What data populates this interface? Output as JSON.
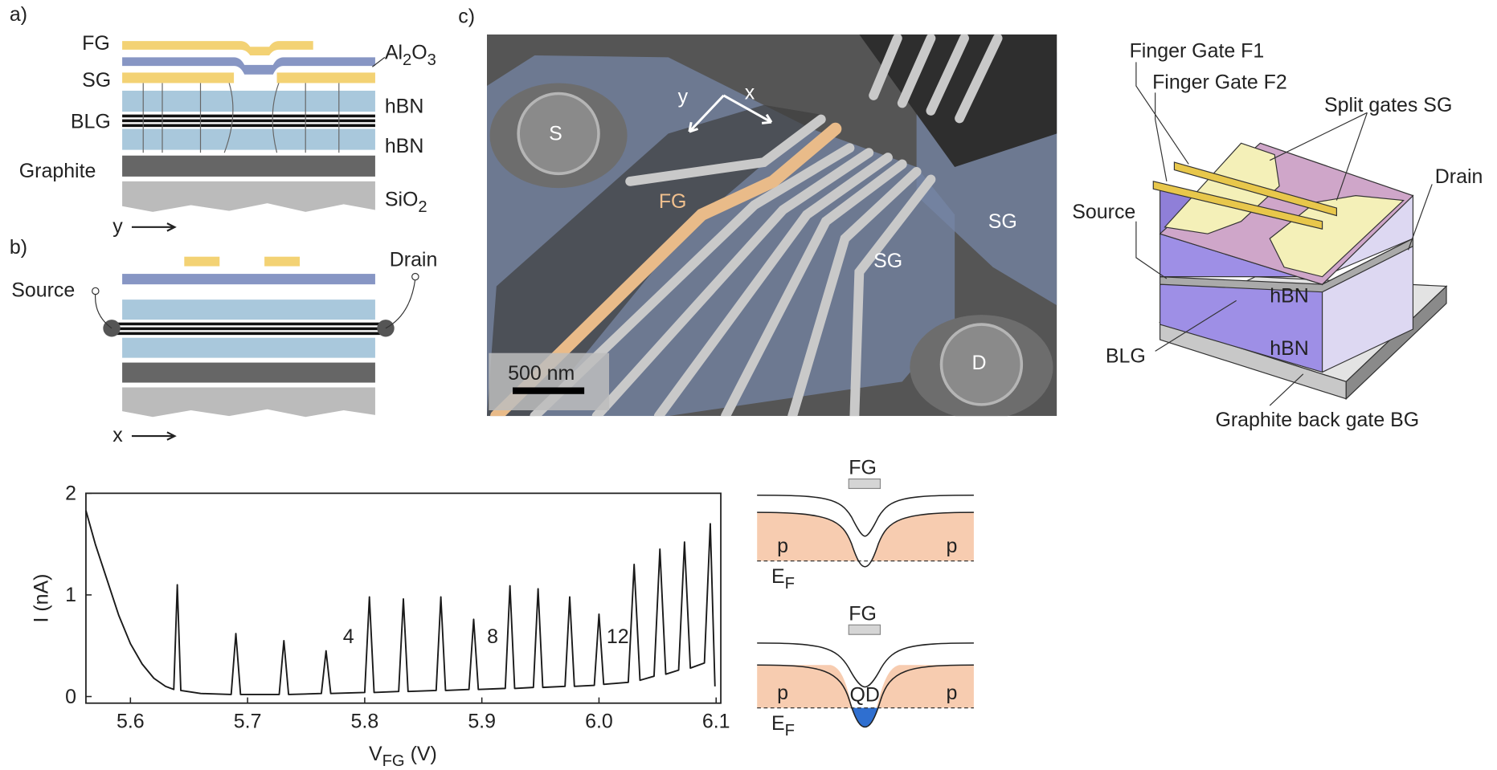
{
  "panel_a": {
    "label": "a)",
    "finger_gate": "FG",
    "split_gate": "SG",
    "blg": "BLG",
    "graphite": "Graphite",
    "al2o3": [
      "Al",
      "2",
      "O",
      "3"
    ],
    "hbn_top": "hBN",
    "hbn_bottom": "hBN",
    "sio2": [
      "SiO",
      "2"
    ],
    "axis": "y"
  },
  "panel_b": {
    "label": "b)",
    "source": "Source",
    "drain": "Drain",
    "axis": "x"
  },
  "panel_c": {
    "label": "c)",
    "source": "S",
    "drain": "D",
    "finger_gate": "FG",
    "split_gate_left": "SG",
    "split_gate_right": "SG",
    "scale_bar": "500 nm",
    "axis_y": "y",
    "axis_x": "x"
  },
  "schematic": {
    "finger_gate_1": "Finger Gate F1",
    "finger_gate_2": "Finger Gate F2",
    "split_gates": "Split gates SG",
    "drain": "Drain",
    "source": "Source",
    "hbn_top": "hBN",
    "hbn_bottom": "hBN",
    "blg": "BLG",
    "back_gate": "Graphite back gate BG"
  },
  "band_diagrams": [
    {
      "gate": "FG",
      "left": "p",
      "right": "p",
      "fermi": [
        "E",
        "F"
      ]
    },
    {
      "gate": "FG",
      "left": "p",
      "right": "p",
      "dot": "QD",
      "fermi": [
        "E",
        "F"
      ]
    }
  ],
  "chart_data": {
    "type": "line",
    "ylabel": "I (nA)",
    "xlabel": [
      "V",
      "FG",
      " (V)"
    ],
    "annotations": [
      "4",
      "8",
      "12"
    ],
    "color": "#1a1a1a",
    "xlim": [
      5.562,
      6.104
    ],
    "ylim": [
      -0.065,
      2
    ],
    "xticks": [
      5.6,
      5.7,
      5.8,
      5.9,
      {
        "value": 6.0,
        "label": "6.0"
      },
      6.1
    ],
    "yticks": [
      0,
      1,
      2
    ],
    "x": [
      5.562,
      5.57,
      5.58,
      5.59,
      5.6,
      5.61,
      5.62,
      5.63,
      5.637,
      5.64,
      5.643,
      5.66,
      5.686,
      5.69,
      5.694,
      5.727,
      5.731,
      5.735,
      5.763,
      5.767,
      5.771,
      5.8,
      5.804,
      5.808,
      5.829,
      5.833,
      5.837,
      5.861,
      5.865,
      5.869,
      5.889,
      5.893,
      5.897,
      5.92,
      5.924,
      5.928,
      5.944,
      5.948,
      5.952,
      5.971,
      5.975,
      5.979,
      5.996,
      6.0,
      6.004,
      6.025,
      6.03,
      6.035,
      6.047,
      6.052,
      6.057,
      6.068,
      6.073,
      6.078,
      6.09,
      6.095,
      6.099
    ],
    "values": [
      1.83,
      1.5,
      1.15,
      0.8,
      0.52,
      0.32,
      0.18,
      0.1,
      0.07,
      1.1,
      0.06,
      0.03,
      0.02,
      0.62,
      0.02,
      0.02,
      0.55,
      0.02,
      0.03,
      0.45,
      0.03,
      0.04,
      0.98,
      0.04,
      0.05,
      0.96,
      0.05,
      0.06,
      0.98,
      0.06,
      0.07,
      0.76,
      0.07,
      0.08,
      1.09,
      0.08,
      0.09,
      1.06,
      0.09,
      0.1,
      0.98,
      0.1,
      0.11,
      0.81,
      0.12,
      0.14,
      1.3,
      0.16,
      0.2,
      1.45,
      0.22,
      0.26,
      1.52,
      0.28,
      0.33,
      1.7,
      0.1
    ]
  }
}
